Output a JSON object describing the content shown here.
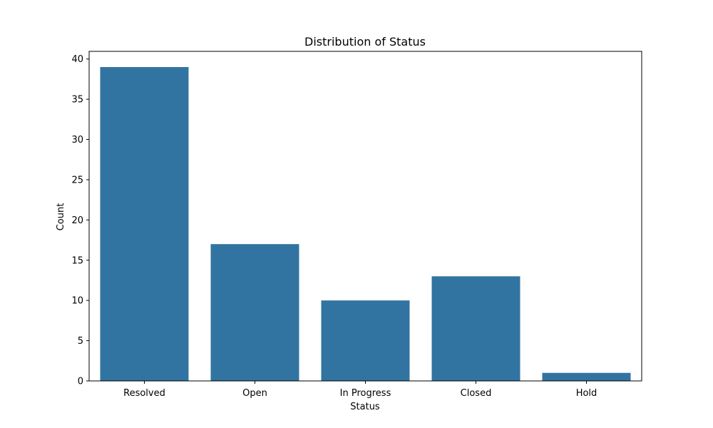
{
  "chart_data": {
    "type": "bar",
    "title": "Distribution of Status",
    "xlabel": "Status",
    "ylabel": "Count",
    "categories": [
      "Resolved",
      "Open",
      "In Progress",
      "Closed",
      "Hold"
    ],
    "values": [
      39,
      17,
      10,
      13,
      1
    ],
    "ylim": [
      0,
      40.95
    ],
    "yticks": [
      0,
      5,
      10,
      15,
      20,
      25,
      30,
      35,
      40
    ],
    "bar_color": "#3274a1",
    "grid": false,
    "legend": "none"
  }
}
